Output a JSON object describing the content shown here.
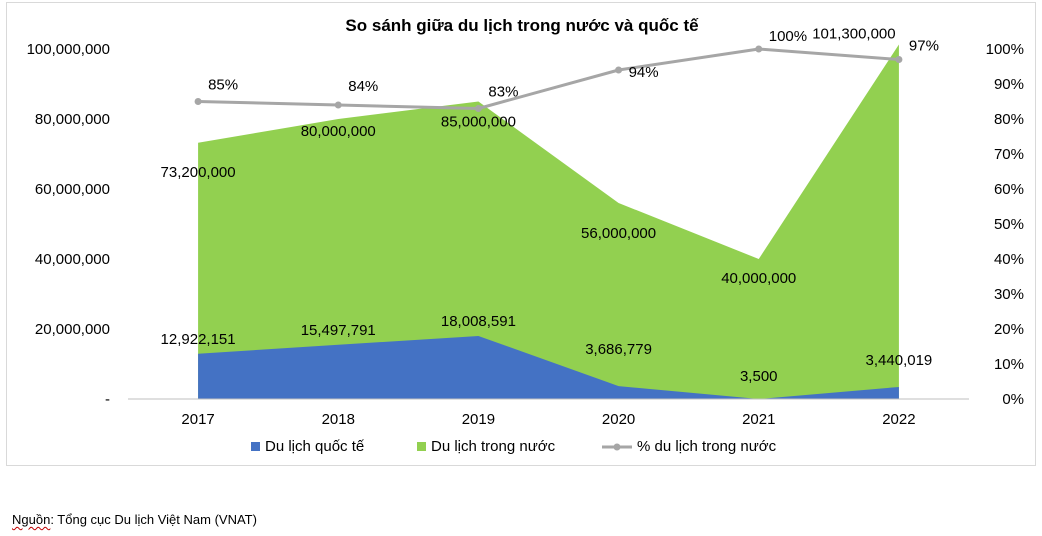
{
  "chart_data": {
    "type": "area",
    "title": "So sánh giữa du lịch trong nước và quốc tế",
    "categories": [
      "2017",
      "2018",
      "2019",
      "2020",
      "2021",
      "2022"
    ],
    "y_left": {
      "range": [
        0,
        100000000
      ],
      "ticks": [
        0,
        20000000,
        40000000,
        60000000,
        80000000,
        100000000
      ],
      "tick_labels": [
        "-",
        "20,000,000",
        "40,000,000",
        "60,000,000",
        "80,000,000",
        "100,000,000"
      ]
    },
    "y_right": {
      "range": [
        0,
        1
      ],
      "ticks": [
        0,
        0.1,
        0.2,
        0.3,
        0.4,
        0.5,
        0.6,
        0.7,
        0.8,
        0.9,
        1.0
      ],
      "tick_labels": [
        "0%",
        "10%",
        "20%",
        "30%",
        "40%",
        "50%",
        "60%",
        "70%",
        "80%",
        "90%",
        "100%"
      ]
    },
    "series": [
      {
        "name": "Du lịch quốc tế",
        "kind": "area",
        "color": "#4472c4",
        "values": [
          12922151,
          15497791,
          18008591,
          3686779,
          3500,
          3440019
        ],
        "labels": [
          "12,922,151",
          "15,497,791",
          "18,008,591",
          "3,686,779",
          "3,500",
          "3,440,019"
        ]
      },
      {
        "name": "Du lịch trong nước",
        "kind": "area",
        "color": "#92d050",
        "values": [
          73200000,
          80000000,
          85000000,
          56000000,
          40000000,
          101300000
        ],
        "labels": [
          "73,200,000",
          "80,000,000",
          "85,000,000",
          "56,000,000",
          "40,000,000",
          "101,300,000"
        ]
      },
      {
        "name": "% du lịch trong nước",
        "kind": "line",
        "axis": "right",
        "color": "#a6a6a6",
        "values": [
          0.85,
          0.84,
          0.83,
          0.94,
          1.0,
          0.97
        ],
        "labels": [
          "85%",
          "84%",
          "83%",
          "94%",
          "100%",
          "97%"
        ]
      }
    ],
    "legend": "bottom",
    "grid": false
  },
  "source_note": {
    "prefix": "Nguồn",
    "rest": ": Tổng cục Du lịch Việt Nam (VNAT)"
  }
}
